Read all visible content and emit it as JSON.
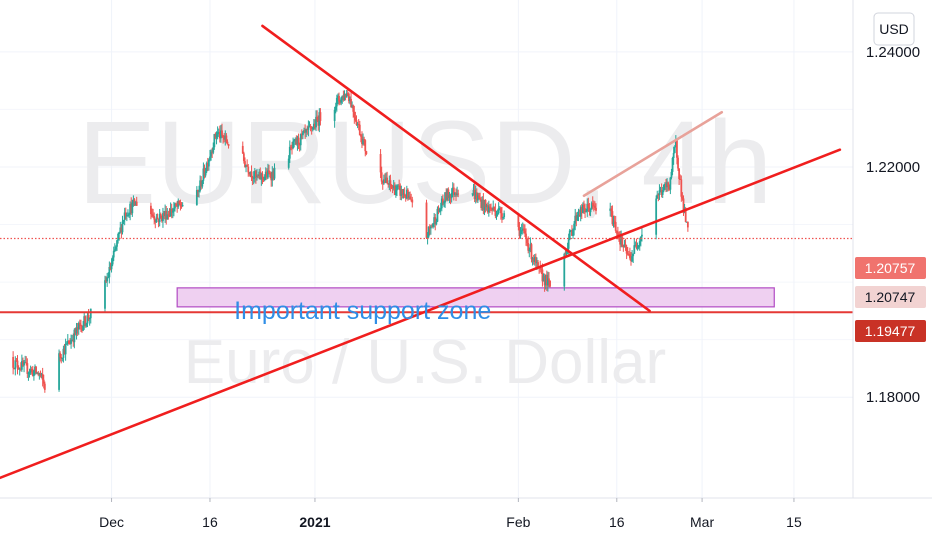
{
  "currency_button": "USD",
  "chart_data": {
    "type": "candlestick",
    "watermark": {
      "symbol": "EURUSD, 4h",
      "description": "Euro / U.S. Dollar"
    },
    "ylim": [
      1.1625,
      1.249
    ],
    "xlim": [
      "2020-11-14",
      "2021-03-24"
    ],
    "y_ticks": [
      {
        "value": 1.24,
        "label": "1.24000"
      },
      {
        "value": 1.22,
        "label": "1.22000"
      },
      {
        "value": 1.18,
        "label": "1.18000"
      }
    ],
    "x_ticks": [
      {
        "date": "2020-12-01",
        "label": "Dec",
        "bold": false
      },
      {
        "date": "2020-12-16",
        "label": "16",
        "bold": false
      },
      {
        "date": "2021-01-01",
        "label": "2021",
        "bold": true
      },
      {
        "date": "2021-02-01",
        "label": "Feb",
        "bold": false
      },
      {
        "date": "2021-02-16",
        "label": "16",
        "bold": false
      },
      {
        "date": "2021-03-01",
        "label": "Mar",
        "bold": false
      },
      {
        "date": "2021-03-15",
        "label": "15",
        "bold": false
      }
    ],
    "candle_colors": {
      "up": "#26a69a",
      "down": "#ef5350"
    },
    "price_path": [
      [
        "2020-11-14",
        1.187
      ],
      [
        "2020-11-17",
        1.1855
      ],
      [
        "2020-11-20",
        1.184
      ],
      [
        "2020-11-21",
        1.1815
      ],
      [
        "2020-11-23",
        1.187
      ],
      [
        "2020-11-26",
        1.192
      ],
      [
        "2020-11-29",
        1.196
      ],
      [
        "2020-12-01",
        1.203
      ],
      [
        "2020-12-03",
        1.212
      ],
      [
        "2020-12-05",
        1.214
      ],
      [
        "2020-12-08",
        1.211
      ],
      [
        "2020-12-11",
        1.213
      ],
      [
        "2020-12-14",
        1.215
      ],
      [
        "2020-12-17",
        1.226
      ],
      [
        "2020-12-20",
        1.223
      ],
      [
        "2020-12-23",
        1.218
      ],
      [
        "2020-12-26",
        1.219
      ],
      [
        "2020-12-29",
        1.224
      ],
      [
        "2020-12-31",
        1.226
      ],
      [
        "2021-01-02",
        1.229
      ],
      [
        "2021-01-06",
        1.233
      ],
      [
        "2021-01-09",
        1.222
      ],
      [
        "2021-01-12",
        1.217
      ],
      [
        "2021-01-15",
        1.215
      ],
      [
        "2021-01-18",
        1.208
      ],
      [
        "2021-01-21",
        1.215
      ],
      [
        "2021-01-24",
        1.217
      ],
      [
        "2021-01-27",
        1.213
      ],
      [
        "2021-01-30",
        1.212
      ],
      [
        "2021-02-02",
        1.208
      ],
      [
        "2021-02-04",
        1.202
      ],
      [
        "2021-02-06",
        1.199
      ],
      [
        "2021-02-08",
        1.205
      ],
      [
        "2021-02-10",
        1.212
      ],
      [
        "2021-02-12",
        1.213
      ],
      [
        "2021-02-15",
        1.212
      ],
      [
        "2021-02-17",
        1.206
      ],
      [
        "2021-02-18",
        1.204
      ],
      [
        "2021-02-20",
        1.209
      ],
      [
        "2021-02-22",
        1.215
      ],
      [
        "2021-02-24",
        1.217
      ],
      [
        "2021-02-25",
        1.224
      ],
      [
        "2021-02-26",
        1.214
      ],
      [
        "2021-02-27",
        1.2075
      ]
    ],
    "horizontal_lines": [
      {
        "price": 1.20757,
        "color": "#ef5350",
        "style": "dotted"
      },
      {
        "price": 1.19477,
        "color": "#e53935",
        "style": "solid"
      }
    ],
    "price_labels": [
      {
        "price": 1.20757,
        "label": "1.20757",
        "bg": "#f0736e",
        "fg": "#ffffff"
      },
      {
        "price": 1.20747,
        "label": "1.20747",
        "bg": "#f2d3d2",
        "fg": "#131722"
      },
      {
        "price": 1.19477,
        "label": "1.19477",
        "bg": "#c93226",
        "fg": "#ffffff"
      }
    ],
    "trendlines": [
      {
        "from": [
          "2020-12-24",
          1.2445
        ],
        "to": [
          "2021-02-21",
          1.195
        ],
        "color": "#f01e1e"
      },
      {
        "from": [
          "2020-11-14",
          1.166
        ],
        "to": [
          "2021-03-22",
          1.223
        ],
        "color": "#f01e1e"
      },
      {
        "from": [
          "2021-02-11",
          1.215
        ],
        "to": [
          "2021-03-04",
          1.2295
        ],
        "color": "#e8a29a"
      }
    ],
    "zone": {
      "from": "2020-12-11",
      "to": "2021-03-12",
      "price_low": 1.1957,
      "price_high": 1.199,
      "fill": "#ecc8ee",
      "stroke": "#b24bc4",
      "label": "Important  support zone"
    }
  }
}
